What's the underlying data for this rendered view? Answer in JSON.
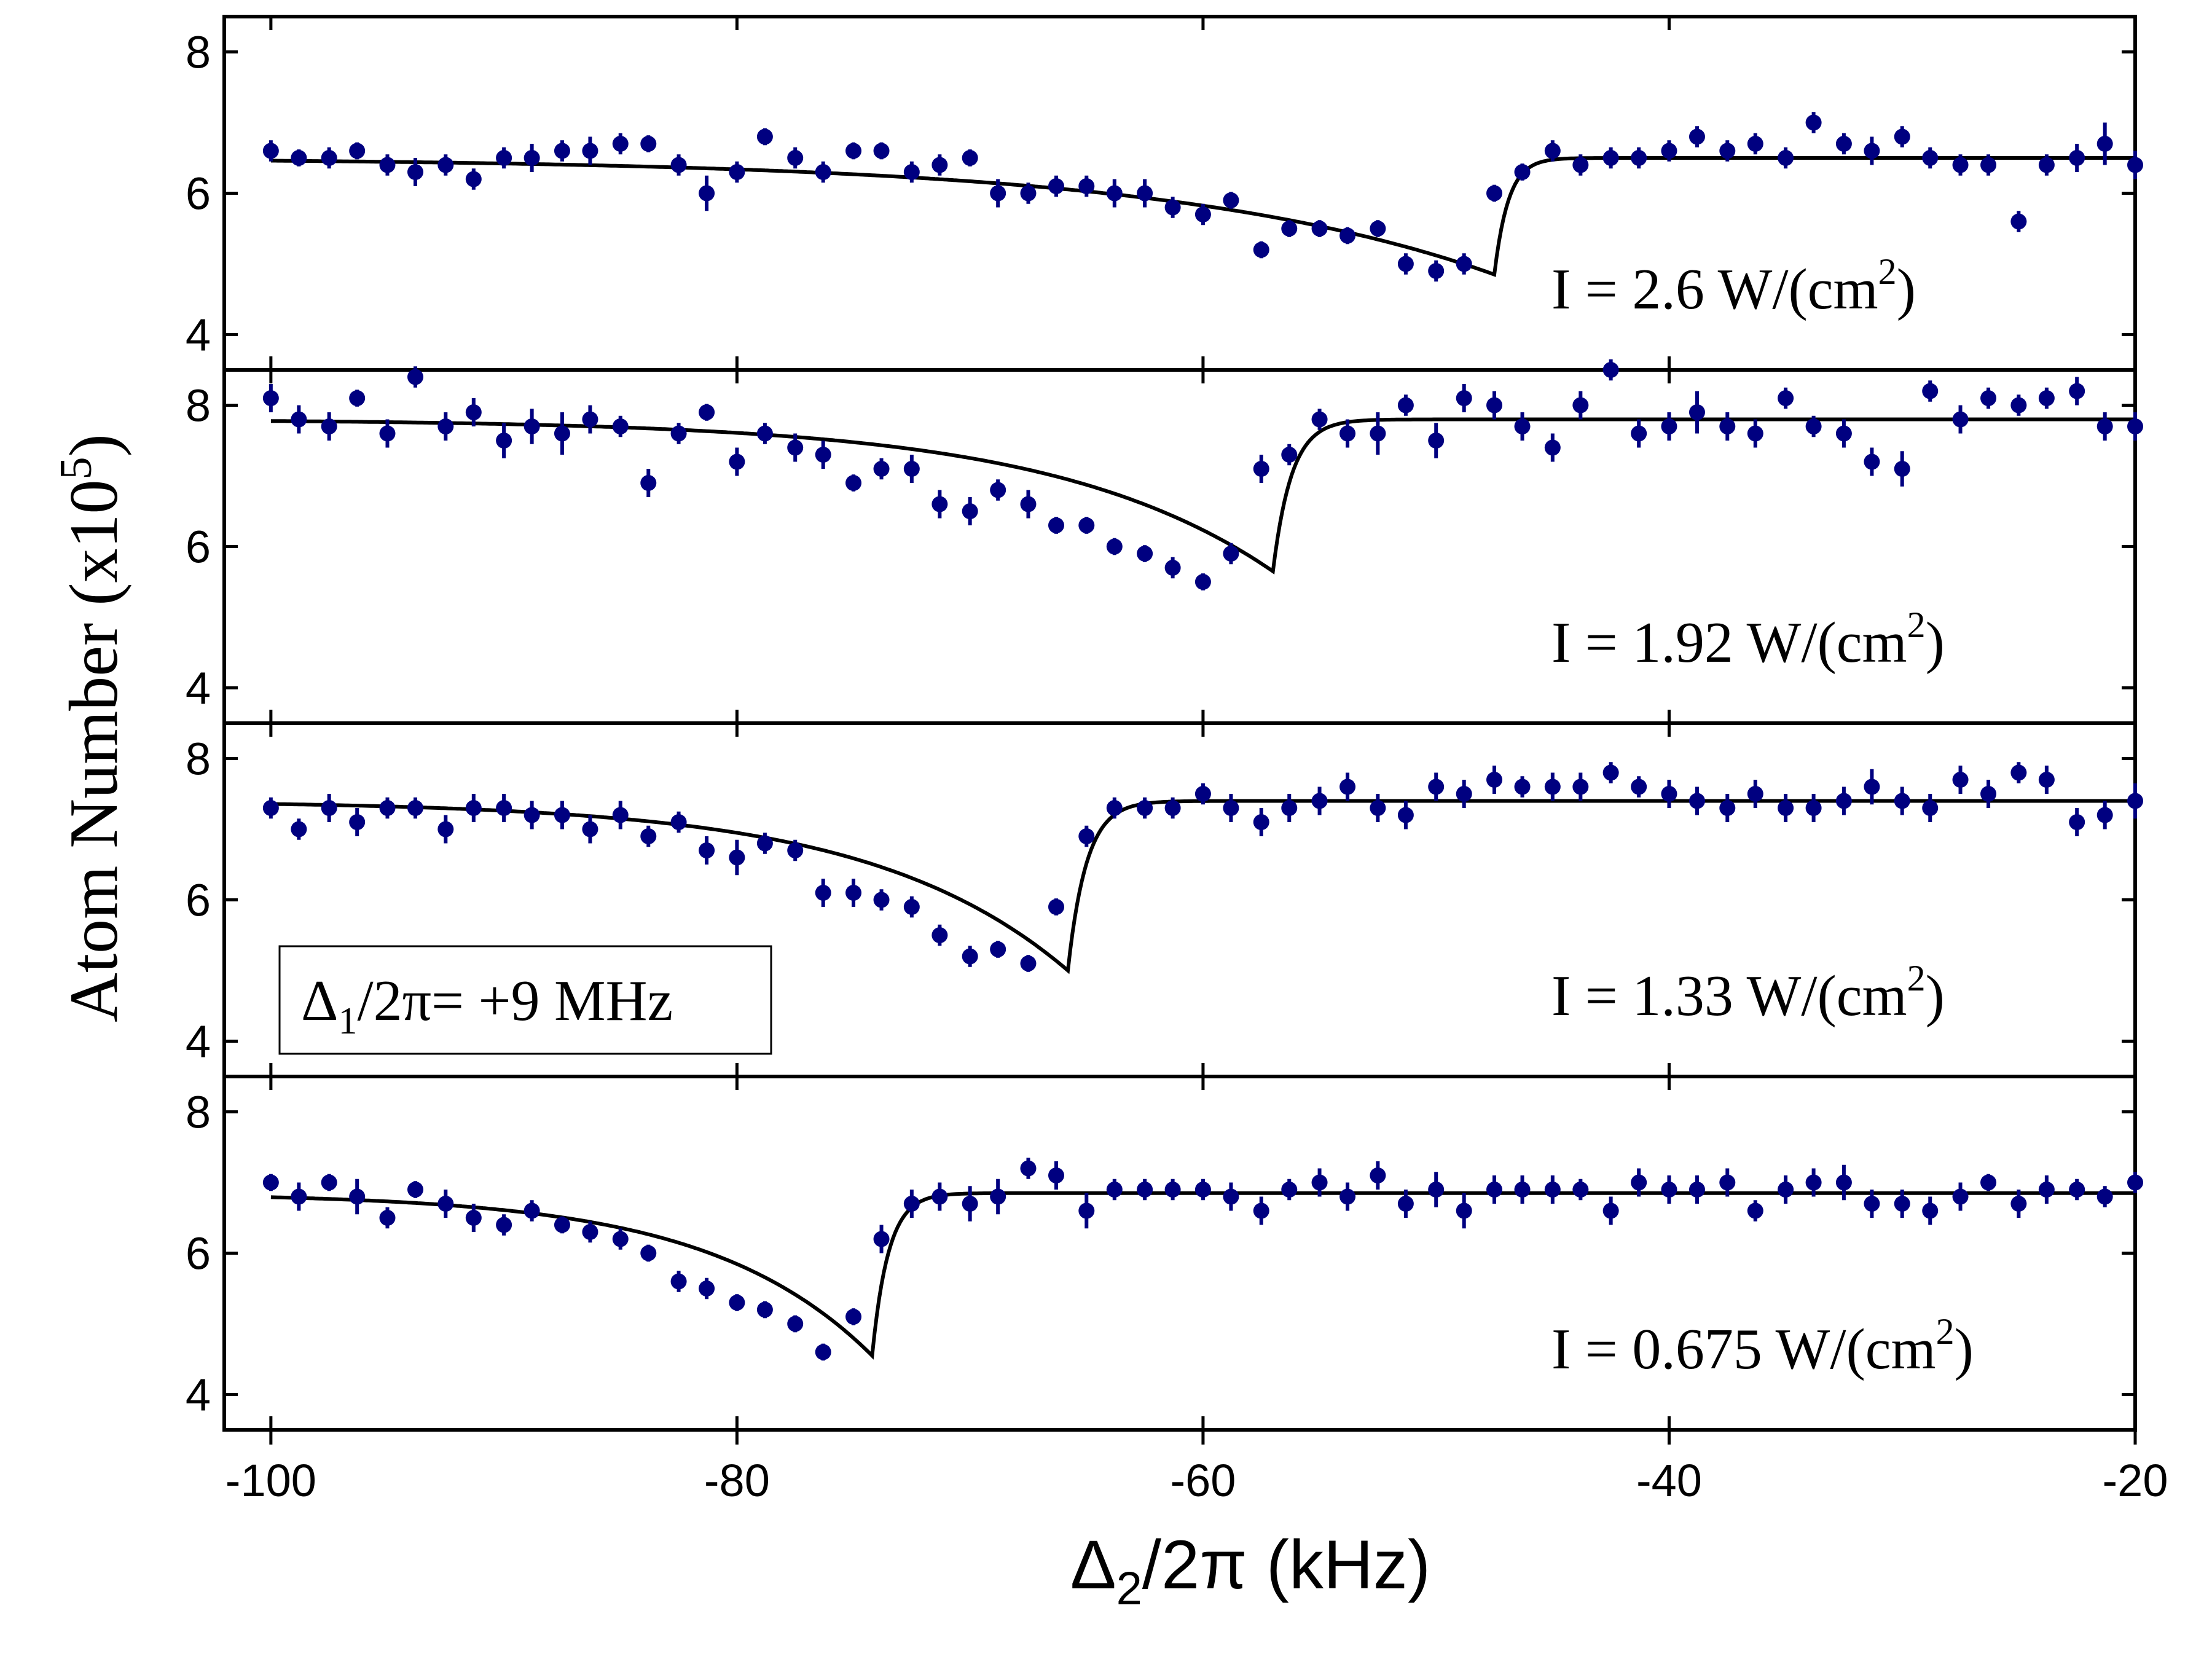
{
  "chart_data": {
    "type": "scatter",
    "layout": "4 stacked panels sharing x axis",
    "xlabel_parts": [
      "Δ",
      "2",
      "/2π (kHz)"
    ],
    "ylabel_parts": [
      "Atom Number (x10",
      "5",
      ")"
    ],
    "xlim": [
      -102,
      -20
    ],
    "xticks": [
      -100,
      -80,
      -60,
      -40,
      -20
    ],
    "xtick_labels": [
      "-100",
      "-80",
      "-60",
      "-40",
      "-20"
    ],
    "ylim": [
      3.5,
      8.5
    ],
    "yticks": [
      4,
      6,
      8
    ],
    "ytick_labels": [
      "4",
      "6",
      "8"
    ],
    "inset_label_parts": [
      "Δ",
      "1",
      "/2π= +9 MHz"
    ],
    "colors": {
      "points": "#000080",
      "fit": "#000000",
      "frame": "#000000"
    },
    "panels": [
      {
        "label_parts": [
          "I = 2.6 W/(cm",
          "2",
          ")"
        ],
        "fit": {
          "baseline": 6.5,
          "x0": -47.5,
          "w_left": 14,
          "w_right": 0.6,
          "depth": 1.65
        },
        "x": [
          -100,
          -98.8,
          -97.5,
          -96.3,
          -95,
          -93.8,
          -92.5,
          -91.3,
          -90,
          -88.8,
          -87.5,
          -86.3,
          -85,
          -83.8,
          -82.5,
          -81.3,
          -80,
          -78.8,
          -77.5,
          -76.3,
          -75,
          -73.8,
          -72.5,
          -71.3,
          -70,
          -68.8,
          -67.5,
          -66.3,
          -65,
          -63.8,
          -62.5,
          -61.3,
          -60,
          -58.8,
          -57.5,
          -56.3,
          -55,
          -53.8,
          -52.5,
          -51.3,
          -50,
          -48.8,
          -47.5,
          -46.3,
          -45,
          -43.8,
          -42.5,
          -41.3,
          -40,
          -38.8,
          -37.5,
          -36.3,
          -35,
          -33.8,
          -32.5,
          -31.3,
          -30,
          -28.8,
          -27.5,
          -26.3,
          -25,
          -23.8,
          -22.5,
          -21.3,
          -20
        ],
        "y": [
          6.6,
          6.5,
          6.5,
          6.6,
          6.4,
          6.3,
          6.4,
          6.2,
          6.5,
          6.5,
          6.6,
          6.6,
          6.7,
          6.7,
          6.4,
          6.0,
          6.3,
          6.8,
          6.5,
          6.3,
          6.6,
          6.6,
          6.3,
          6.4,
          6.5,
          6.0,
          6.0,
          6.1,
          6.1,
          6.0,
          6.0,
          5.8,
          5.7,
          5.9,
          5.2,
          5.5,
          5.5,
          5.4,
          5.5,
          5.0,
          4.9,
          5.0,
          6.0,
          6.3,
          6.6,
          6.4,
          6.5,
          6.5,
          6.6,
          6.8,
          6.6,
          6.7,
          6.5,
          7.0,
          6.7,
          6.6,
          6.8,
          6.5,
          6.4,
          6.4,
          5.6,
          6.4,
          6.5,
          6.7,
          6.4
        ],
        "err": [
          0.15,
          0.12,
          0.15,
          0.12,
          0.15,
          0.2,
          0.15,
          0.15,
          0.15,
          0.2,
          0.15,
          0.2,
          0.15,
          0.12,
          0.15,
          0.25,
          0.15,
          0.12,
          0.15,
          0.15,
          0.12,
          0.12,
          0.15,
          0.15,
          0.12,
          0.2,
          0.15,
          0.15,
          0.15,
          0.2,
          0.2,
          0.15,
          0.15,
          0.12,
          0.12,
          0.12,
          0.12,
          0.12,
          0.12,
          0.15,
          0.15,
          0.15,
          0.12,
          0.12,
          0.15,
          0.15,
          0.15,
          0.15,
          0.15,
          0.15,
          0.15,
          0.15,
          0.15,
          0.15,
          0.15,
          0.2,
          0.15,
          0.15,
          0.15,
          0.15,
          0.15,
          0.15,
          0.2,
          0.3,
          0.2
        ]
      },
      {
        "label_parts": [
          "I = 1.92 W/(cm",
          "2",
          ")"
        ],
        "fit": {
          "baseline": 7.8,
          "x0": -57.0,
          "w_left": 9.5,
          "w_right": 0.8,
          "depth": 2.15
        },
        "x": [
          -100,
          -98.8,
          -97.5,
          -96.3,
          -95,
          -93.8,
          -92.5,
          -91.3,
          -90,
          -88.8,
          -87.5,
          -86.3,
          -85,
          -83.8,
          -82.5,
          -81.3,
          -80,
          -78.8,
          -77.5,
          -76.3,
          -75,
          -73.8,
          -72.5,
          -71.3,
          -70,
          -68.8,
          -67.5,
          -66.3,
          -65,
          -63.8,
          -62.5,
          -61.3,
          -60,
          -58.8,
          -57.5,
          -56.3,
          -55,
          -53.8,
          -52.5,
          -51.3,
          -50,
          -48.8,
          -47.5,
          -46.3,
          -45,
          -43.8,
          -42.5,
          -41.3,
          -40,
          -38.8,
          -37.5,
          -36.3,
          -35,
          -33.8,
          -32.5,
          -31.3,
          -30,
          -28.8,
          -27.5,
          -26.3,
          -25,
          -23.8,
          -22.5,
          -21.3,
          -20
        ],
        "y": [
          8.1,
          7.8,
          7.7,
          8.1,
          7.6,
          8.4,
          7.7,
          7.9,
          7.5,
          7.7,
          7.6,
          7.8,
          7.7,
          6.9,
          7.6,
          7.9,
          7.2,
          7.6,
          7.4,
          7.3,
          6.9,
          7.1,
          7.1,
          6.6,
          6.5,
          6.8,
          6.6,
          6.3,
          6.3,
          6.0,
          5.9,
          5.7,
          5.5,
          5.9,
          7.1,
          7.3,
          7.8,
          7.6,
          7.6,
          8.0,
          7.5,
          8.1,
          8.0,
          7.7,
          7.4,
          8.0,
          8.5,
          7.6,
          7.7,
          7.9,
          7.7,
          7.6,
          8.1,
          7.7,
          7.6,
          7.2,
          7.1,
          8.2,
          7.8,
          8.1,
          8.0,
          8.1,
          8.2,
          7.7,
          7.7
        ],
        "err": [
          0.2,
          0.2,
          0.2,
          0.12,
          0.2,
          0.15,
          0.2,
          0.2,
          0.25,
          0.25,
          0.3,
          0.2,
          0.15,
          0.2,
          0.15,
          0.12,
          0.2,
          0.15,
          0.2,
          0.2,
          0.12,
          0.15,
          0.2,
          0.2,
          0.2,
          0.15,
          0.2,
          0.12,
          0.12,
          0.12,
          0.12,
          0.15,
          0.12,
          0.15,
          0.2,
          0.15,
          0.15,
          0.2,
          0.3,
          0.15,
          0.25,
          0.2,
          0.2,
          0.2,
          0.2,
          0.2,
          0.15,
          0.2,
          0.2,
          0.3,
          0.2,
          0.2,
          0.15,
          0.15,
          0.2,
          0.2,
          0.25,
          0.15,
          0.2,
          0.15,
          0.15,
          0.15,
          0.2,
          0.2,
          0.2
        ]
      },
      {
        "label_parts": [
          "I = 1.33 W/(cm",
          "2",
          ")"
        ],
        "fit": {
          "baseline": 7.4,
          "x0": -65.8,
          "w_left": 8.5,
          "w_right": 0.8,
          "depth": 2.4
        },
        "x": [
          -100,
          -98.8,
          -97.5,
          -96.3,
          -95,
          -93.8,
          -92.5,
          -91.3,
          -90,
          -88.8,
          -87.5,
          -86.3,
          -85,
          -83.8,
          -82.5,
          -81.3,
          -80,
          -78.8,
          -77.5,
          -76.3,
          -75,
          -73.8,
          -72.5,
          -71.3,
          -70,
          -68.8,
          -67.5,
          -66.3,
          -65,
          -63.8,
          -62.5,
          -61.3,
          -60,
          -58.8,
          -57.5,
          -56.3,
          -55,
          -53.8,
          -52.5,
          -51.3,
          -50,
          -48.8,
          -47.5,
          -46.3,
          -45,
          -43.8,
          -42.5,
          -41.3,
          -40,
          -38.8,
          -37.5,
          -36.3,
          -35,
          -33.8,
          -32.5,
          -31.3,
          -30,
          -28.8,
          -27.5,
          -26.3,
          -25,
          -23.8,
          -22.5,
          -21.3,
          -20
        ],
        "y": [
          7.3,
          7.0,
          7.3,
          7.1,
          7.3,
          7.3,
          7.0,
          7.3,
          7.3,
          7.2,
          7.2,
          7.0,
          7.2,
          6.9,
          7.1,
          6.7,
          6.6,
          6.8,
          6.7,
          6.1,
          6.1,
          6.0,
          5.9,
          5.5,
          5.2,
          5.3,
          5.1,
          5.9,
          6.9,
          7.3,
          7.3,
          7.3,
          7.5,
          7.3,
          7.1,
          7.3,
          7.4,
          7.6,
          7.3,
          7.2,
          7.6,
          7.5,
          7.7,
          7.6,
          7.6,
          7.6,
          7.8,
          7.6,
          7.5,
          7.4,
          7.3,
          7.5,
          7.3,
          7.3,
          7.4,
          7.6,
          7.4,
          7.3,
          7.7,
          7.5,
          7.8,
          7.7,
          7.1,
          7.2,
          7.4
        ],
        "err": [
          0.15,
          0.15,
          0.2,
          0.2,
          0.15,
          0.15,
          0.2,
          0.2,
          0.2,
          0.2,
          0.2,
          0.2,
          0.2,
          0.15,
          0.15,
          0.2,
          0.25,
          0.15,
          0.15,
          0.2,
          0.2,
          0.15,
          0.15,
          0.15,
          0.15,
          0.12,
          0.12,
          0.12,
          0.15,
          0.15,
          0.15,
          0.15,
          0.15,
          0.2,
          0.2,
          0.2,
          0.2,
          0.2,
          0.2,
          0.2,
          0.2,
          0.2,
          0.2,
          0.15,
          0.2,
          0.2,
          0.15,
          0.15,
          0.2,
          0.2,
          0.2,
          0.2,
          0.2,
          0.2,
          0.2,
          0.25,
          0.2,
          0.2,
          0.2,
          0.2,
          0.15,
          0.2,
          0.2,
          0.2,
          0.25
        ]
      },
      {
        "label_parts": [
          "I = 0.675 W/(cm",
          "2",
          ")"
        ],
        "fit": {
          "baseline": 6.85,
          "x0": -74.2,
          "w_left": 7.0,
          "w_right": 0.7,
          "depth": 2.3
        },
        "x": [
          -100,
          -98.8,
          -97.5,
          -96.3,
          -95,
          -93.8,
          -92.5,
          -91.3,
          -90,
          -88.8,
          -87.5,
          -86.3,
          -85,
          -83.8,
          -82.5,
          -81.3,
          -80,
          -78.8,
          -77.5,
          -76.3,
          -75,
          -73.8,
          -72.5,
          -71.3,
          -70,
          -68.8,
          -67.5,
          -66.3,
          -65,
          -63.8,
          -62.5,
          -61.3,
          -60,
          -58.8,
          -57.5,
          -56.3,
          -55,
          -53.8,
          -52.5,
          -51.3,
          -50,
          -48.8,
          -47.5,
          -46.3,
          -45,
          -43.8,
          -42.5,
          -41.3,
          -40,
          -38.8,
          -37.5,
          -36.3,
          -35,
          -33.8,
          -32.5,
          -31.3,
          -30,
          -28.8,
          -27.5,
          -26.3,
          -25,
          -23.8,
          -22.5,
          -21.3,
          -20
        ],
        "y": [
          7.0,
          6.8,
          7.0,
          6.8,
          6.5,
          6.9,
          6.7,
          6.5,
          6.4,
          6.6,
          6.4,
          6.3,
          6.2,
          6.0,
          5.6,
          5.5,
          5.3,
          5.2,
          5.0,
          4.6,
          5.1,
          6.2,
          6.7,
          6.8,
          6.7,
          6.8,
          7.2,
          7.1,
          6.6,
          6.9,
          6.9,
          6.9,
          6.9,
          6.8,
          6.6,
          6.9,
          7.0,
          6.8,
          7.1,
          6.7,
          6.9,
          6.6,
          6.9,
          6.9,
          6.9,
          6.9,
          6.6,
          7.0,
          6.9,
          6.9,
          7.0,
          6.6,
          6.9,
          7.0,
          7.0,
          6.7,
          6.7,
          6.6,
          6.8,
          7.0,
          6.7,
          6.9,
          6.9,
          6.8,
          7.0
        ],
        "err": [
          0.12,
          0.2,
          0.12,
          0.25,
          0.15,
          0.12,
          0.2,
          0.2,
          0.15,
          0.15,
          0.12,
          0.15,
          0.15,
          0.12,
          0.15,
          0.15,
          0.12,
          0.12,
          0.12,
          0.12,
          0.12,
          0.2,
          0.2,
          0.2,
          0.25,
          0.25,
          0.15,
          0.2,
          0.25,
          0.15,
          0.15,
          0.15,
          0.15,
          0.2,
          0.2,
          0.15,
          0.2,
          0.2,
          0.2,
          0.2,
          0.25,
          0.25,
          0.2,
          0.2,
          0.2,
          0.15,
          0.2,
          0.2,
          0.2,
          0.2,
          0.2,
          0.15,
          0.2,
          0.2,
          0.25,
          0.2,
          0.2,
          0.2,
          0.2,
          0.12,
          0.2,
          0.2,
          0.15,
          0.15,
          0.15
        ]
      }
    ]
  }
}
